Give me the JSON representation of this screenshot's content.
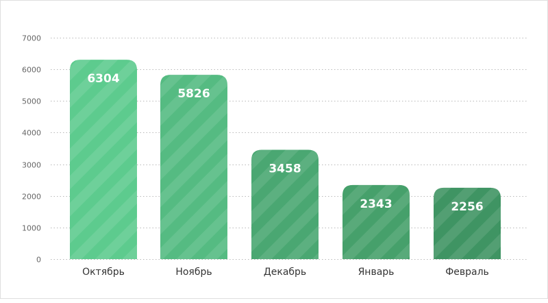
{
  "chart_data": {
    "type": "bar",
    "categories": [
      "Октябрь",
      "Ноябрь",
      "Декабрь",
      "Январь",
      "Февраль"
    ],
    "values": [
      6304,
      5826,
      3458,
      2343,
      2256
    ],
    "data_labels": [
      "6304",
      "5826",
      "3458",
      "2343",
      "2256"
    ],
    "ylim": [
      0,
      7000
    ],
    "yticks": [
      0,
      1000,
      2000,
      3000,
      4000,
      5000,
      6000,
      7000
    ],
    "ytick_labels": [
      "0",
      "1000",
      "2000",
      "3000",
      "4000",
      "5000",
      "6000",
      "7000"
    ],
    "grid": true,
    "bar_colors": [
      "#5dcb8e",
      "#55bb82",
      "#4aa772",
      "#46a06b",
      "#3f9463"
    ],
    "title": "",
    "xlabel": "",
    "ylabel": ""
  }
}
